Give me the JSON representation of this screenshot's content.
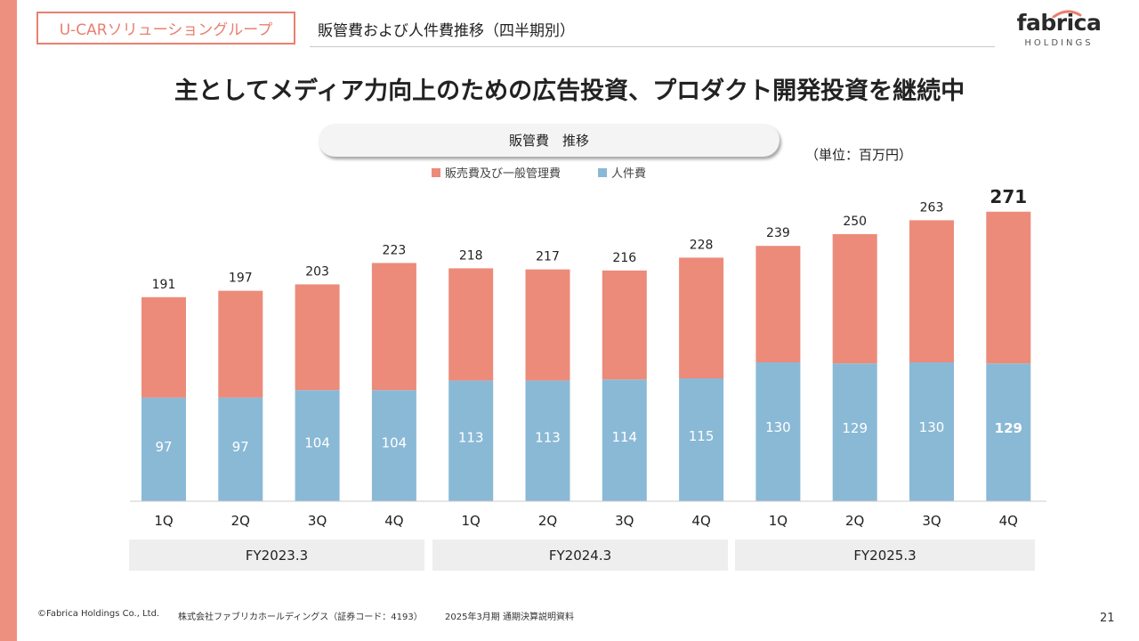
{
  "header": {
    "group_tag": "U-CARソリューショングループ",
    "subtitle": "販管費および人件費推移（四半期別）",
    "logo_main": "fabrica",
    "logo_sub": "HOLDINGS"
  },
  "headline": "主としてメディア力向上のための広告投資、プロダクト開発投資を継続中",
  "chart_data": {
    "type": "bar",
    "stacked": true,
    "title": "販管費　推移",
    "unit": "（単位：百万円）",
    "categories": [
      "1Q",
      "2Q",
      "3Q",
      "4Q",
      "1Q",
      "2Q",
      "3Q",
      "4Q",
      "1Q",
      "2Q",
      "3Q",
      "4Q"
    ],
    "groups": [
      {
        "label": "FY2023.3",
        "count": 4
      },
      {
        "label": "FY2024.3",
        "count": 4
      },
      {
        "label": "FY2025.3",
        "count": 4
      }
    ],
    "totals": [
      191,
      197,
      203,
      223,
      218,
      217,
      216,
      228,
      239,
      250,
      263,
      271
    ],
    "series": [
      {
        "name": "人件費",
        "color": "#8ab9d6",
        "values": [
          97,
          97,
          104,
          104,
          113,
          113,
          114,
          115,
          130,
          129,
          130,
          129
        ]
      },
      {
        "name": "販売費及び一般管理費",
        "color": "#ec8b7a",
        "values": [
          94,
          100,
          99,
          119,
          105,
          104,
          102,
          113,
          109,
          121,
          133,
          142
        ]
      }
    ],
    "legend": [
      "販売費及び一般管理費",
      "人件費"
    ],
    "legend_position": "top",
    "ylim": [
      0,
      290
    ],
    "grid": false
  },
  "footer": {
    "copyright": "©Fabrica Holdings Co., Ltd.",
    "company": "株式会社ファブリカホールディングス（証券コード：4193）",
    "document": "2025年3月期 通期決算説明資料",
    "page": "21"
  },
  "colors": {
    "accent": "#ec8b7a",
    "labor": "#8ab9d6",
    "border": "#e8806f"
  }
}
